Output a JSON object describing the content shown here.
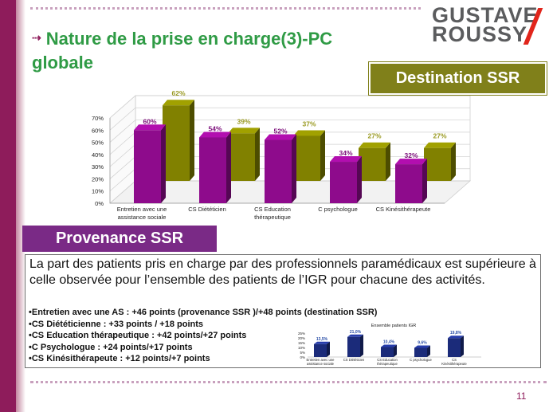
{
  "title": {
    "line1": "Nature de la prise en charge(3)-PC",
    "line2": "globale",
    "bullet_symbol": "⇢"
  },
  "logo": {
    "line1": "GUSTAVE",
    "line2": "ROUSSY"
  },
  "destination_label": "Destination SSR",
  "provenance_label": "Provenance SSR",
  "paragraph": "La part des patients  pris en charge par des professionnels paramédicaux est supérieure à celle observée pour l’ensemble des patients de l’IGR pour chacune des activités.",
  "bullets": [
    "•Entretien avec une AS : +46 points (provenance SSR )/+48 points (destination SSR)",
    "•CS Diététicienne : +33 points / +18 points",
    "•CS Education thérapeutique : +42 points/+27 points",
    "•C Psychologue : +24 points/+17 points",
    "•CS Kinésithérapeute : +12 points/+7 points"
  ],
  "page_number": "11",
  "colors": {
    "purple": "#8e0b8c",
    "olive": "#818100",
    "olive_label": "#9a9a22",
    "purple_label": "#7a0a78",
    "navy": "#1b2b7a",
    "navy_label": "#2b4fa8",
    "accent": "#8e1c5b",
    "title_green": "#2f9b45"
  },
  "chart_data": [
    {
      "type": "bar",
      "title": "",
      "categories": [
        [
          "Entretien avec une",
          "assistance sociale"
        ],
        [
          "CS Diététicien"
        ],
        [
          "CS Education",
          "thérapeutique"
        ],
        [
          "C psychologue"
        ],
        [
          "CS Kinésithérapeute"
        ]
      ],
      "series": [
        {
          "name": "Provenance SSR",
          "values": [
            60,
            54,
            52,
            34,
            32
          ],
          "labels": [
            "60%",
            "54%",
            "52%",
            "34%",
            "32%"
          ]
        },
        {
          "name": "Destination SSR",
          "values": [
            62,
            39,
            37,
            27,
            27
          ],
          "labels": [
            "62%",
            "39%",
            "37%",
            "27%",
            "27%"
          ]
        }
      ],
      "yticks": [
        "0%",
        "10%",
        "20%",
        "30%",
        "40%",
        "50%",
        "60%",
        "70%"
      ],
      "ylim": [
        0,
        70
      ],
      "grid": true
    },
    {
      "type": "bar",
      "title": "Ensemble patients IGR",
      "categories": [
        [
          "Entretien avec une",
          "assistance sociale"
        ],
        [
          "CS Diététicien"
        ],
        [
          "CS Education",
          "thérapeutique"
        ],
        [
          "C psychologue"
        ],
        [
          "CS",
          "Kinésithérapeute"
        ]
      ],
      "series": [
        {
          "values": [
            13.5,
            21.0,
            10.4,
            9.6,
            19.8
          ],
          "labels": [
            "13,5%",
            "21,0%",
            "10,4%",
            "9,6%",
            "19,8%"
          ]
        }
      ],
      "yticks": [
        "0%",
        "5%",
        "10%",
        "15%",
        "20%",
        "25%"
      ],
      "ylim": [
        0,
        25
      ],
      "grid": false
    }
  ]
}
